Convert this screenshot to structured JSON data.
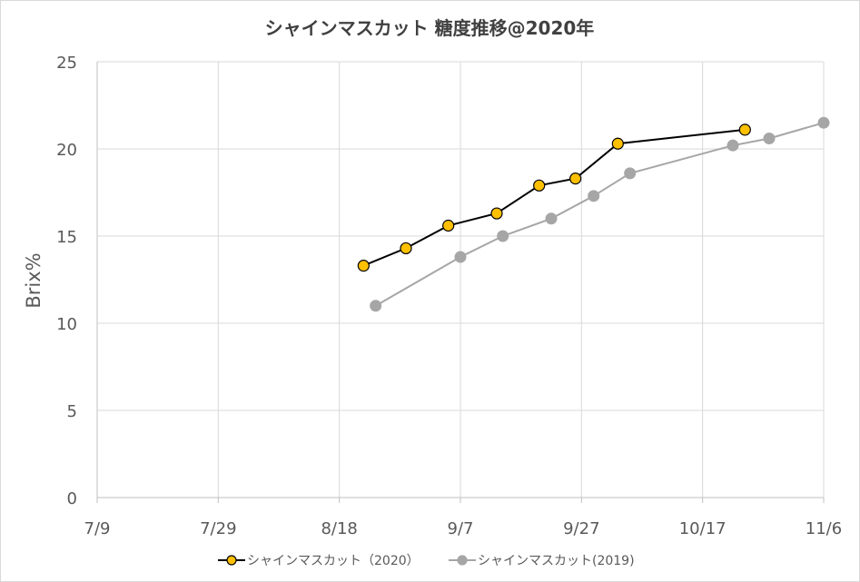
{
  "chart_data": {
    "type": "line",
    "title": "シャインマスカット 糖度推移@2020年",
    "xlabel": "",
    "ylabel": "Brix%",
    "x_ticks": [
      "7/9",
      "7/29",
      "8/18",
      "9/7",
      "9/27",
      "10/17",
      "11/6"
    ],
    "xlim": [
      "2020-07-09",
      "2020-11-06"
    ],
    "ylim": [
      0,
      25
    ],
    "y_ticks": [
      "0",
      "5",
      "10",
      "15",
      "20",
      "25"
    ],
    "grid": true,
    "legend_position": "bottom",
    "series": [
      {
        "name": "シャインマスカット（2020）",
        "color": "#000000",
        "marker_fill": "#ffc000",
        "x": [
          "2020-08-22",
          "2020-08-29",
          "2020-09-05",
          "2020-09-13",
          "2020-09-20",
          "2020-09-26",
          "2020-10-03",
          "2020-10-24"
        ],
        "values": [
          13.3,
          14.3,
          15.6,
          16.3,
          17.9,
          18.3,
          20.3,
          21.1
        ]
      },
      {
        "name": "シャインマスカット(2019)",
        "color": "#a6a6a6",
        "marker_fill": "#a6a6a6",
        "x": [
          "2020-08-24",
          "2020-09-07",
          "2020-09-14",
          "2020-09-22",
          "2020-09-29",
          "2020-10-05",
          "2020-10-22",
          "2020-10-28",
          "2020-11-06"
        ],
        "values": [
          11.0,
          13.8,
          15.0,
          16.0,
          17.3,
          18.6,
          20.2,
          20.6,
          21.5
        ]
      }
    ]
  }
}
